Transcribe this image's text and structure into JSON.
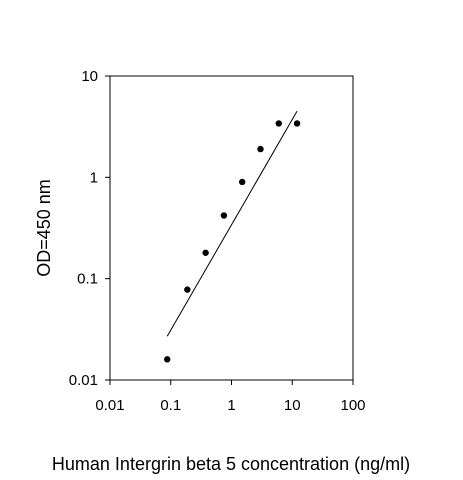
{
  "chart_data": {
    "type": "scatter",
    "title": "",
    "xlabel": "Human Intergrin beta 5 concentration (ng/ml)",
    "ylabel": "OD=450 nm",
    "x_scale": "log",
    "y_scale": "log",
    "xlim": [
      0.01,
      100
    ],
    "ylim": [
      0.01,
      10
    ],
    "x_ticks": [
      0.01,
      0.1,
      1,
      10,
      100
    ],
    "x_tick_labels": [
      "0.01",
      "0.1",
      "1",
      "10",
      "100"
    ],
    "y_ticks": [
      0.01,
      0.1,
      1,
      10
    ],
    "y_tick_labels": [
      "0.01",
      "0.1",
      "1",
      "10"
    ],
    "grid": false,
    "legend": "none",
    "series": [
      {
        "x": [
          0.0875,
          0.1875,
          0.375,
          0.75,
          1.5,
          3.0,
          6.0,
          12.0
        ],
        "y": [
          0.016,
          0.078,
          0.18,
          0.42,
          0.9,
          1.9,
          3.4,
          3.4
        ]
      }
    ],
    "fit_line": {
      "x": [
        0.0875,
        12.0
      ],
      "y": [
        0.027,
        4.5
      ]
    },
    "colors": {
      "marker": "#000000",
      "line": "#000000",
      "axis": "#000000"
    }
  }
}
